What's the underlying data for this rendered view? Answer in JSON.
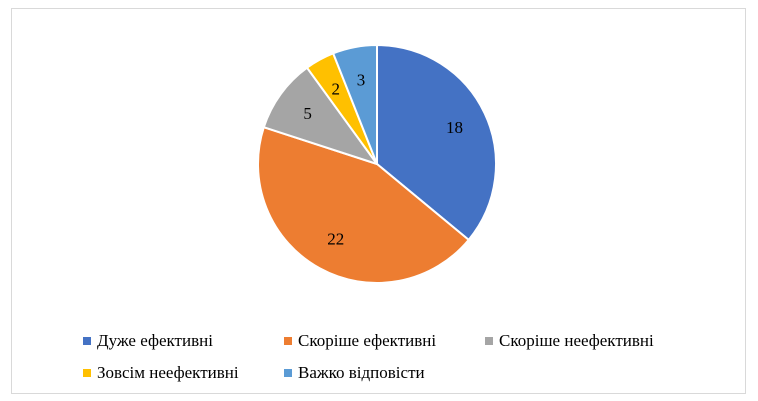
{
  "chart_data": {
    "type": "pie",
    "title": "",
    "categories": [
      "Дуже ефективні",
      "Скоріше ефективні",
      "Скоріше неефективні",
      "Зовсім неефективні",
      "Важко відповісти"
    ],
    "values": [
      18,
      22,
      5,
      2,
      3
    ],
    "data_labels": [
      "18",
      "22",
      "5",
      "2",
      "3"
    ],
    "colors": [
      "#4472C4",
      "#ED7D31",
      "#A5A5A5",
      "#FFC000",
      "#5B9BD5"
    ],
    "start_angle_deg": 0,
    "direction": "clockwise",
    "legend_position": "bottom"
  },
  "legend": {
    "items": [
      {
        "label": "Дуже ефективні",
        "color": "#4472C4"
      },
      {
        "label": "Скоріше ефективні",
        "color": "#ED7D31"
      },
      {
        "label": "Скоріше неефективні",
        "color": "#A5A5A5"
      },
      {
        "label": "Зовсім неефективні",
        "color": "#FFC000"
      },
      {
        "label": "Важко відповісти",
        "color": "#5B9BD5"
      }
    ]
  }
}
